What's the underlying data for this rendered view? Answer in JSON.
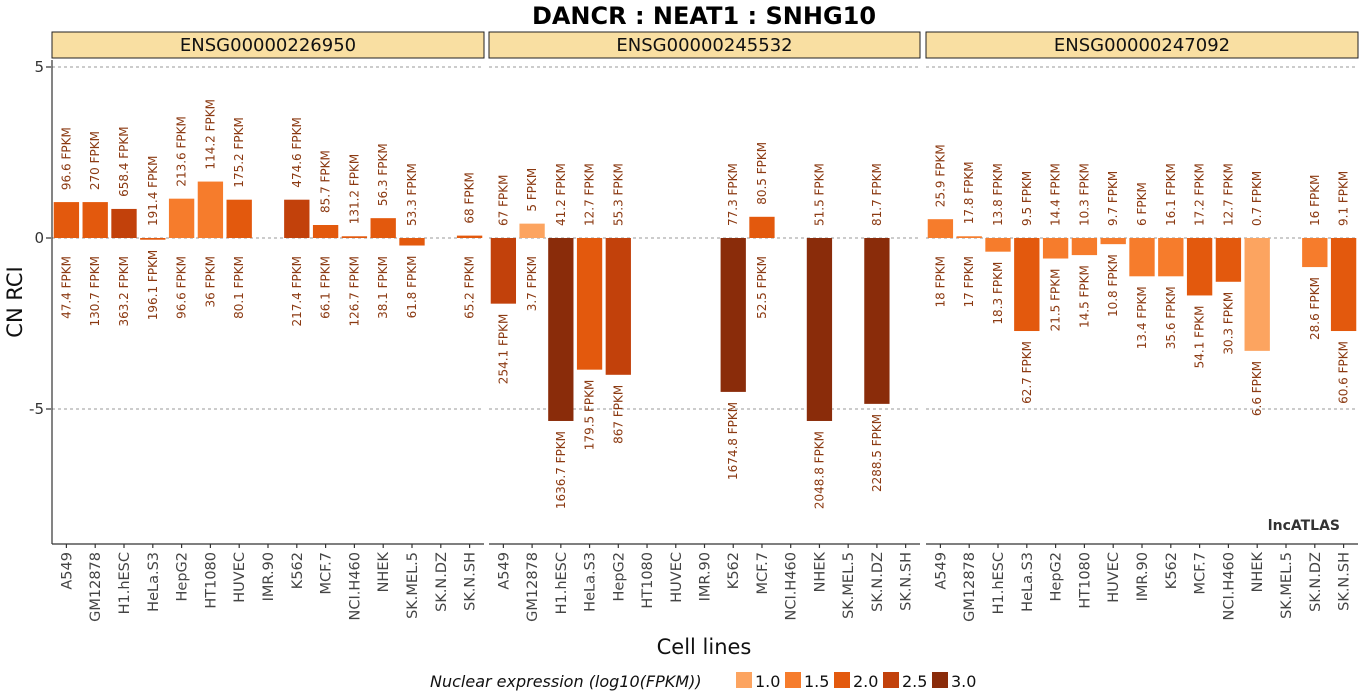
{
  "chart_data": {
    "type": "bar",
    "title": "DANCR : NEAT1 : SNHG10",
    "xlabel": "Cell lines",
    "ylabel": "CN RCI",
    "ylim": [
      -9,
      5
    ],
    "yticks": [
      5,
      0,
      -5
    ],
    "ytick_labels": [
      "5",
      "0",
      "-5"
    ],
    "grid": true,
    "watermark": "lncATLAS",
    "legend": {
      "title": "Nuclear expression (log10(FPKM))",
      "placement": "bottom",
      "entries": [
        {
          "label": "1.0",
          "color": "#fca460"
        },
        {
          "label": "1.5",
          "color": "#f67c2c"
        },
        {
          "label": "2.0",
          "color": "#e3590d"
        },
        {
          "label": "2.5",
          "color": "#c2410b"
        },
        {
          "label": "3.0",
          "color": "#8a2c0a"
        }
      ]
    },
    "categories": [
      "A549",
      "GM12878",
      "H1.hESC",
      "HeLa.S3",
      "HepG2",
      "HT1080",
      "HUVEC",
      "IMR.90",
      "K562",
      "MCF.7",
      "NCI.H460",
      "NHEK",
      "SK.MEL.5",
      "SK.N.DZ",
      "SK.N.SH"
    ],
    "facets": [
      {
        "name": "ENSG00000226950",
        "values": [
          1.05,
          1.05,
          0.85,
          -0.05,
          1.15,
          1.65,
          1.12,
          null,
          1.12,
          0.38,
          0.05,
          0.58,
          -0.22,
          null,
          0.07
        ],
        "colors": [
          "#e3590d",
          "#e3590d",
          "#c2410b",
          "#e3590d",
          "#f67c2c",
          "#f67c2c",
          "#e3590d",
          null,
          "#c2410b",
          "#e3590d",
          "#e3590d",
          "#e3590d",
          "#e3590d",
          null,
          "#e3590d"
        ],
        "cyto_fpkm": [
          "96.6 FPKM",
          "270 FPKM",
          "658.4 FPKM",
          "191.4 FPKM",
          "213.6 FPKM",
          "114.2 FPKM",
          "175.2 FPKM",
          "",
          "474.6 FPKM",
          "85.7 FPKM",
          "131.2 FPKM",
          "56.3 FPKM",
          "53.3 FPKM",
          "",
          "68 FPKM"
        ],
        "nuc_fpkm": [
          "47.4 FPKM",
          "130.7 FPKM",
          "363.2 FPKM",
          "196.1 FPKM",
          "96.6 FPKM",
          "36 FPKM",
          "80.1 FPKM",
          "",
          "217.4 FPKM",
          "66.1 FPKM",
          "126.7 FPKM",
          "38.1 FPKM",
          "61.8 FPKM",
          "",
          "65.2 FPKM"
        ]
      },
      {
        "name": "ENSG00000245532",
        "values": [
          -1.92,
          0.42,
          -5.35,
          -3.85,
          -4.0,
          null,
          null,
          null,
          -4.5,
          0.62,
          null,
          -5.35,
          null,
          -4.85,
          null
        ],
        "colors": [
          "#c2410b",
          "#fca460",
          "#8a2c0a",
          "#e3590d",
          "#c2410b",
          null,
          null,
          null,
          "#8a2c0a",
          "#e3590d",
          null,
          "#8a2c0a",
          null,
          "#8a2c0a",
          null
        ],
        "cyto_fpkm": [
          "67 FPKM",
          "5 FPKM",
          "41.2 FPKM",
          "12.7 FPKM",
          "55.3 FPKM",
          "",
          "",
          "",
          "77.3 FPKM",
          "80.5 FPKM",
          "",
          "51.5 FPKM",
          "",
          "81.7 FPKM",
          ""
        ],
        "nuc_fpkm": [
          "254.1 FPKM",
          "3.7 FPKM",
          "1636.7 FPKM",
          "179.5 FPKM",
          "867 FPKM",
          "",
          "",
          "",
          "1674.8 FPKM",
          "52.5 FPKM",
          "",
          "2048.8 FPKM",
          "",
          "2288.5 FPKM",
          ""
        ]
      },
      {
        "name": "ENSG00000247092",
        "values": [
          0.55,
          0.05,
          -0.4,
          -2.72,
          -0.6,
          -0.5,
          -0.18,
          -1.12,
          -1.12,
          -1.68,
          -1.28,
          -3.3,
          null,
          -0.85,
          -2.72
        ],
        "colors": [
          "#f67c2c",
          "#f67c2c",
          "#f67c2c",
          "#e3590d",
          "#f67c2c",
          "#f67c2c",
          "#f67c2c",
          "#f67c2c",
          "#f67c2c",
          "#e3590d",
          "#e3590d",
          "#fca460",
          null,
          "#f67c2c",
          "#e3590d"
        ],
        "cyto_fpkm": [
          "25.9 FPKM",
          "17.8 FPKM",
          "13.8 FPKM",
          "9.5 FPKM",
          "14.4 FPKM",
          "10.3 FPKM",
          "9.7 FPKM",
          "6 FPKM",
          "16.1 FPKM",
          "17.2 FPKM",
          "12.7 FPKM",
          "0.7 FPKM",
          "",
          "16 FPKM",
          "9.1 FPKM"
        ],
        "nuc_fpkm": [
          "18 FPKM",
          "17 FPKM",
          "18.3 FPKM",
          "62.7 FPKM",
          "21.5 FPKM",
          "14.5 FPKM",
          "10.8 FPKM",
          "13.4 FPKM",
          "35.6 FPKM",
          "54.1 FPKM",
          "30.3 FPKM",
          "6.6 FPKM",
          "",
          "28.6 FPKM",
          "60.6 FPKM"
        ]
      }
    ]
  }
}
